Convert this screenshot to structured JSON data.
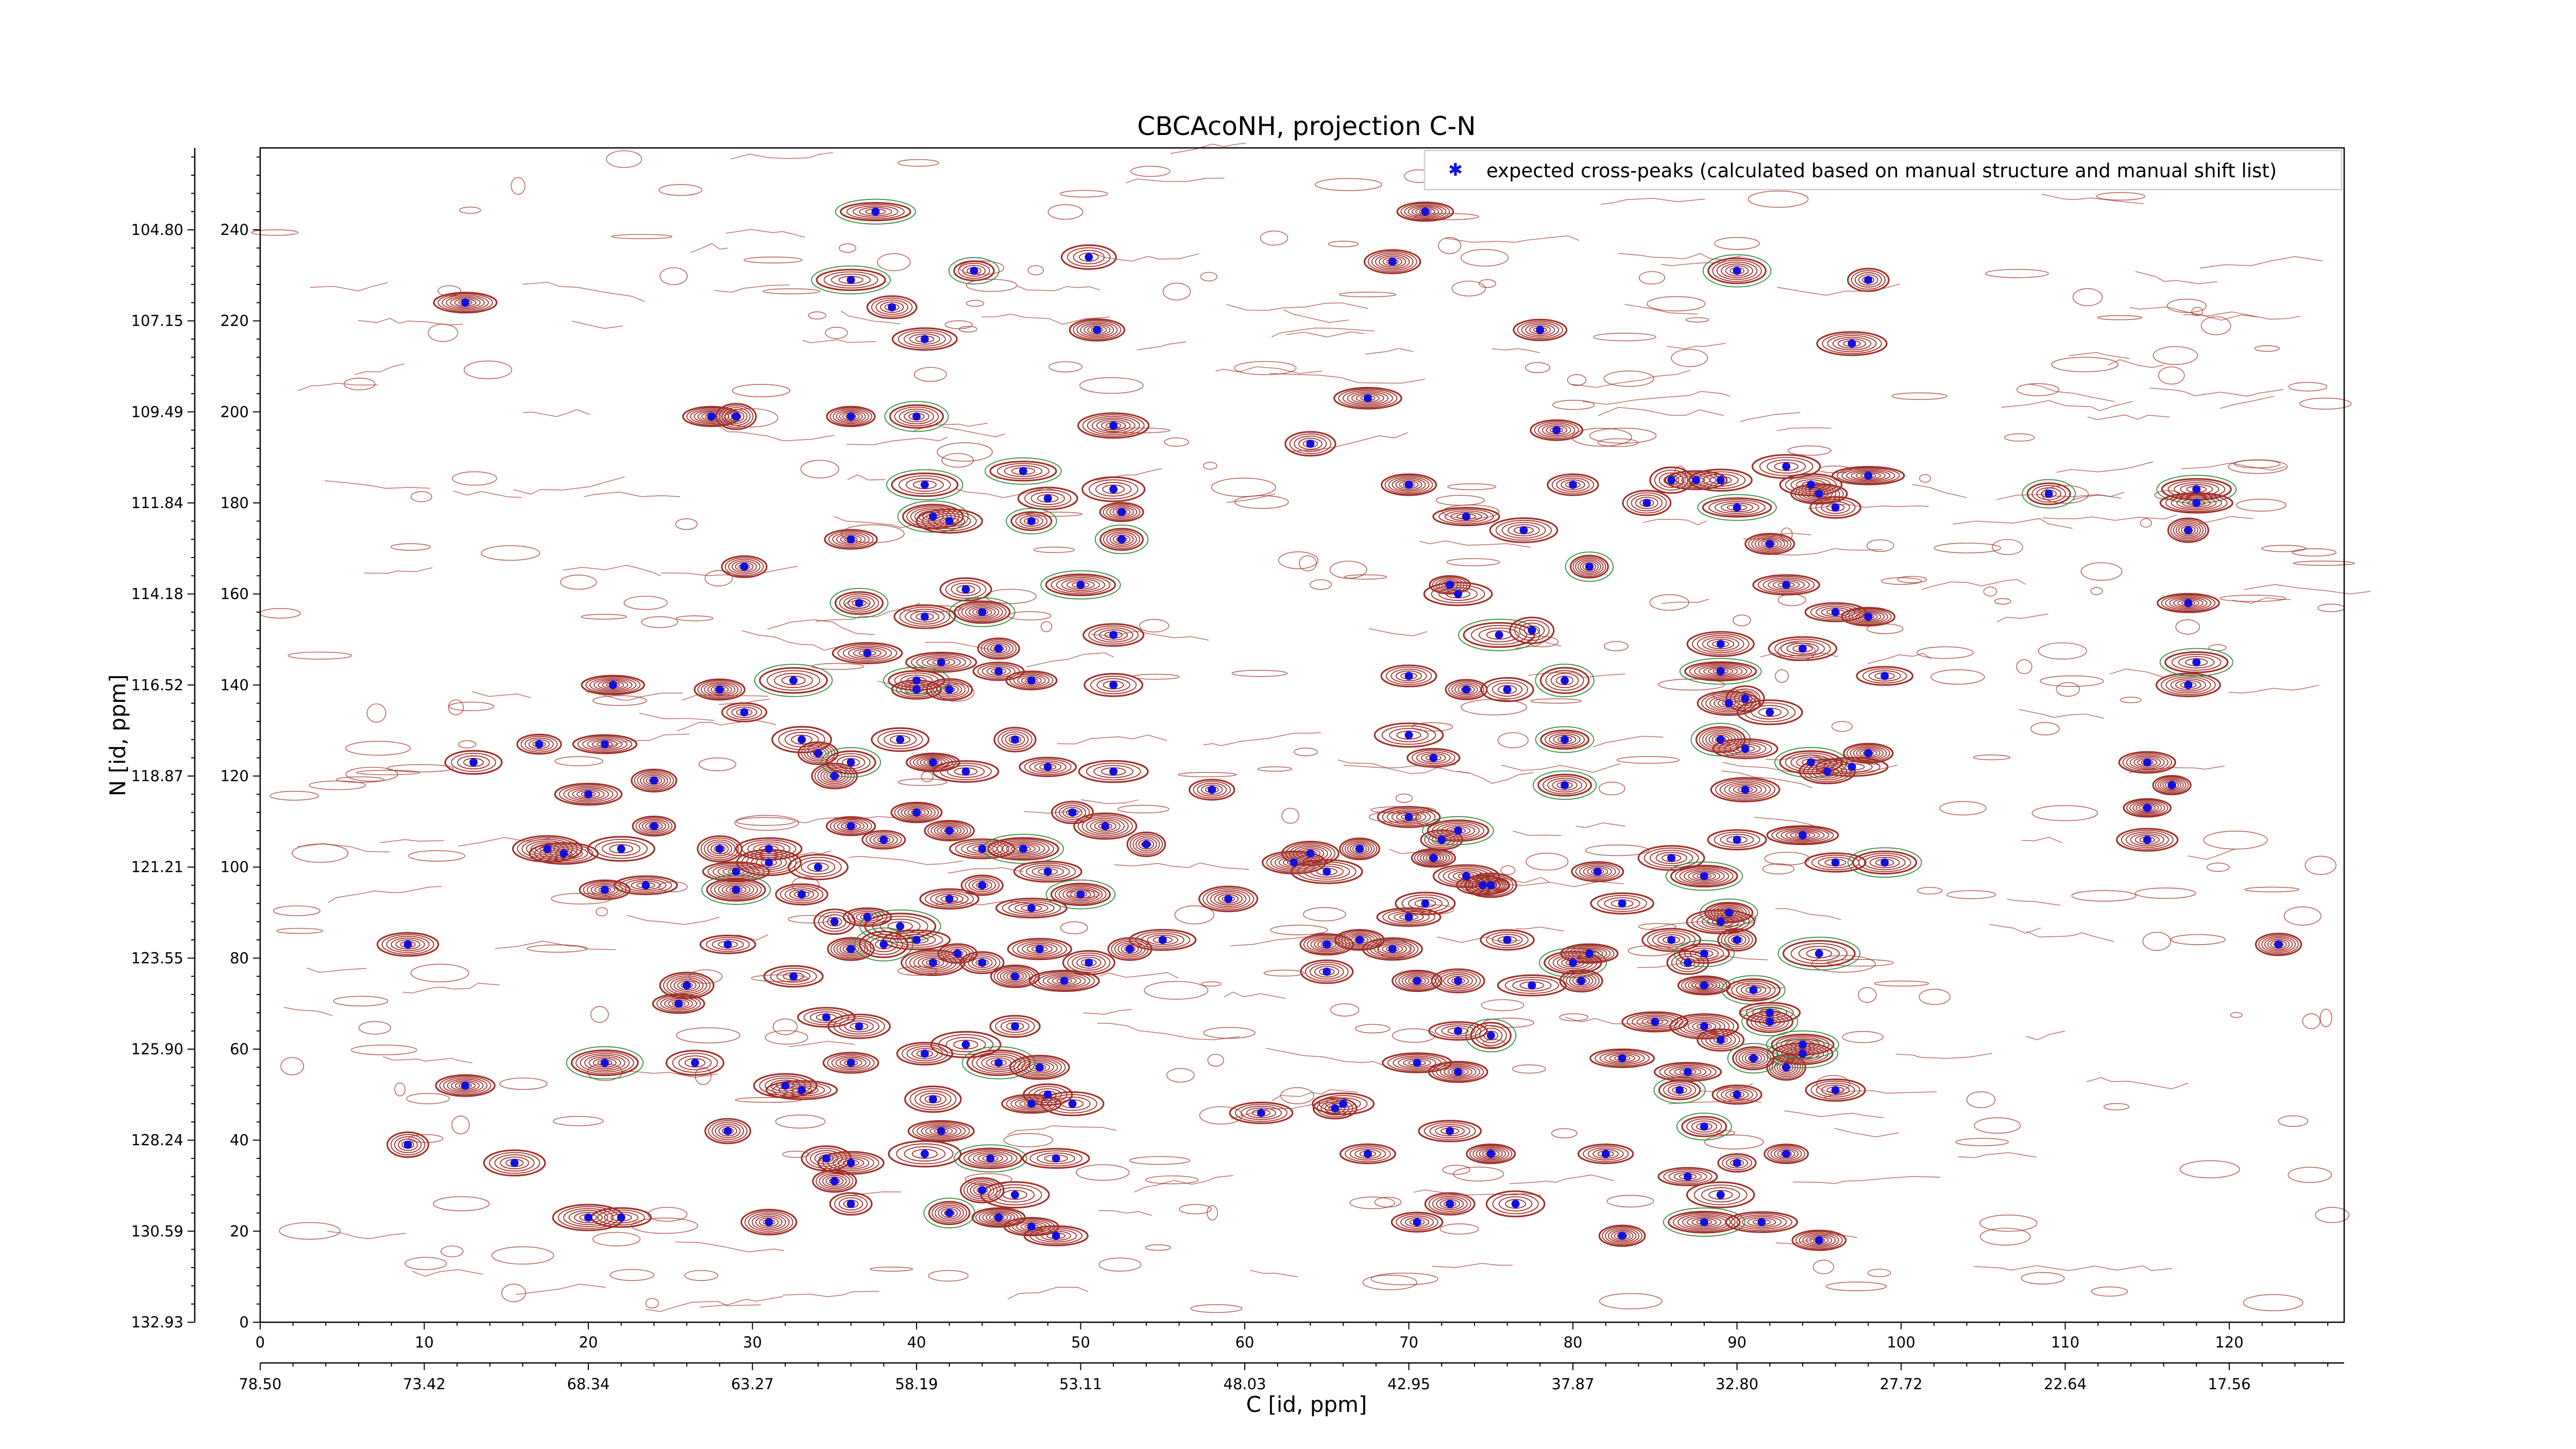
{
  "chart_data": {
    "type": "scatter",
    "title": "CBCAcoNH, projection C-N",
    "xlabel": "C [id, ppm]",
    "ylabel": "N [id, ppm]",
    "xlim": [
      0,
      127
    ],
    "ylim": [
      0,
      258
    ],
    "x_ticks": [
      "0",
      "10",
      "20",
      "30",
      "40",
      "50",
      "60",
      "70",
      "80",
      "90",
      "100",
      "110",
      "120"
    ],
    "x_ticks_secondary": [
      "78.50",
      "73.42",
      "68.34",
      "63.27",
      "58.19",
      "53.11",
      "48.03",
      "42.95",
      "37.87",
      "32.80",
      "27.72",
      "22.64",
      "17.56"
    ],
    "y_ticks": [
      "0",
      "20",
      "40",
      "60",
      "80",
      "100",
      "120",
      "140",
      "160",
      "180",
      "200",
      "220",
      "240"
    ],
    "y_ticks_secondary": [
      "132.93",
      "130.59",
      "128.24",
      "125.90",
      "123.55",
      "121.21",
      "118.87",
      "116.52",
      "114.18",
      "111.84",
      "109.49",
      "107.15",
      "104.80"
    ],
    "legend": {
      "position": "top-right",
      "label": "expected cross-peaks (calculated based on manual structure and manual shift list)"
    },
    "colors": {
      "marker": "#1010e0",
      "contour_pos": "#a0302a",
      "contour_neg": "#2e8b3e"
    },
    "series": [
      {
        "name": "expected cross-peaks (calculated based on manual structure and manual shift list)",
        "points": [
          [
            37.5,
            244
          ],
          [
            71,
            244
          ],
          [
            36,
            229
          ],
          [
            43.5,
            231
          ],
          [
            50.5,
            234
          ],
          [
            69,
            233
          ],
          [
            90,
            231
          ],
          [
            98,
            229
          ],
          [
            12.5,
            224
          ],
          [
            38.5,
            223
          ],
          [
            40.5,
            216
          ],
          [
            51,
            218
          ],
          [
            78,
            218
          ],
          [
            97,
            215
          ],
          [
            29,
            199
          ],
          [
            27.5,
            199
          ],
          [
            36,
            199
          ],
          [
            40,
            199
          ],
          [
            52,
            197
          ],
          [
            64,
            193
          ],
          [
            67.5,
            203
          ],
          [
            79,
            196
          ],
          [
            40.5,
            184
          ],
          [
            46.5,
            187
          ],
          [
            48,
            181
          ],
          [
            41,
            177
          ],
          [
            47,
            176
          ],
          [
            52,
            183
          ],
          [
            52.5,
            178
          ],
          [
            36,
            172
          ],
          [
            29.5,
            166
          ],
          [
            42,
            176
          ],
          [
            52.5,
            172
          ],
          [
            70,
            184
          ],
          [
            73.5,
            177
          ],
          [
            77,
            174
          ],
          [
            80,
            184
          ],
          [
            86,
            185
          ],
          [
            87.5,
            185
          ],
          [
            89,
            185
          ],
          [
            90,
            179
          ],
          [
            84.5,
            180
          ],
          [
            93,
            188
          ],
          [
            96,
            179
          ],
          [
            98,
            186
          ],
          [
            95,
            182
          ],
          [
            94.5,
            184
          ],
          [
            81,
            166
          ],
          [
            92,
            171
          ],
          [
            109,
            182
          ],
          [
            118,
            183
          ],
          [
            117.5,
            174
          ],
          [
            118,
            180
          ],
          [
            36.5,
            158
          ],
          [
            40.5,
            155
          ],
          [
            43,
            161
          ],
          [
            44,
            156
          ],
          [
            50,
            162
          ],
          [
            52,
            151
          ],
          [
            45,
            148
          ],
          [
            41.5,
            145
          ],
          [
            37,
            147
          ],
          [
            72.5,
            162
          ],
          [
            73,
            160
          ],
          [
            75.5,
            151
          ],
          [
            77.5,
            152
          ],
          [
            89,
            149
          ],
          [
            93,
            162
          ],
          [
            94,
            148
          ],
          [
            96,
            156
          ],
          [
            98,
            155
          ],
          [
            117.5,
            158
          ],
          [
            21.5,
            140
          ],
          [
            28,
            139
          ],
          [
            29.5,
            134
          ],
          [
            32.5,
            141
          ],
          [
            40,
            139
          ],
          [
            40,
            141
          ],
          [
            42,
            139
          ],
          [
            45,
            143
          ],
          [
            47,
            141
          ],
          [
            52,
            140
          ],
          [
            70,
            142
          ],
          [
            73.5,
            139
          ],
          [
            76,
            139
          ],
          [
            79.5,
            141
          ],
          [
            89,
            143
          ],
          [
            89.5,
            136
          ],
          [
            90.5,
            137
          ],
          [
            92,
            134
          ],
          [
            99,
            142
          ],
          [
            117.5,
            140
          ],
          [
            118,
            145
          ],
          [
            13,
            123
          ],
          [
            17,
            127
          ],
          [
            21,
            127
          ],
          [
            24,
            119
          ],
          [
            33,
            128
          ],
          [
            34,
            125
          ],
          [
            35,
            120
          ],
          [
            36,
            123
          ],
          [
            39,
            128
          ],
          [
            41,
            123
          ],
          [
            43,
            121
          ],
          [
            46,
            128
          ],
          [
            48,
            122
          ],
          [
            52,
            121
          ],
          [
            58,
            117
          ],
          [
            70,
            129
          ],
          [
            71.5,
            124
          ],
          [
            79.5,
            128
          ],
          [
            79.5,
            118
          ],
          [
            89,
            128
          ],
          [
            90.5,
            126
          ],
          [
            90.5,
            117
          ],
          [
            94.5,
            123
          ],
          [
            95.5,
            121
          ],
          [
            97,
            122
          ],
          [
            98,
            125
          ],
          [
            115,
            123
          ],
          [
            116.5,
            118
          ],
          [
            115,
            113
          ],
          [
            20,
            116
          ],
          [
            17.5,
            104
          ],
          [
            18.5,
            103
          ],
          [
            22,
            104
          ],
          [
            24,
            109
          ],
          [
            28,
            104
          ],
          [
            29,
            99
          ],
          [
            31,
            104
          ],
          [
            34,
            100
          ],
          [
            36,
            109
          ],
          [
            38,
            106
          ],
          [
            40,
            112
          ],
          [
            42,
            108
          ],
          [
            44,
            104
          ],
          [
            46.5,
            104
          ],
          [
            48,
            99
          ],
          [
            49.5,
            112
          ],
          [
            51.5,
            109
          ],
          [
            54,
            105
          ],
          [
            63,
            101
          ],
          [
            64,
            103
          ],
          [
            65,
            99
          ],
          [
            67,
            104
          ],
          [
            70,
            111
          ],
          [
            71.5,
            102
          ],
          [
            72,
            106
          ],
          [
            73,
            108
          ],
          [
            73.5,
            98
          ],
          [
            74.5,
            96
          ],
          [
            71,
            92
          ],
          [
            75,
            96
          ],
          [
            81.5,
            99
          ],
          [
            83,
            92
          ],
          [
            86,
            102
          ],
          [
            88,
            98
          ],
          [
            89.5,
            90
          ],
          [
            90,
            106
          ],
          [
            94,
            107
          ],
          [
            96,
            101
          ],
          [
            99,
            101
          ],
          [
            115,
            106
          ],
          [
            21,
            95
          ],
          [
            23.5,
            96
          ],
          [
            29,
            95
          ],
          [
            31,
            101
          ],
          [
            33,
            94
          ],
          [
            35,
            88
          ],
          [
            37,
            89
          ],
          [
            39,
            87
          ],
          [
            42,
            93
          ],
          [
            44,
            96
          ],
          [
            47,
            91
          ],
          [
            50,
            94
          ],
          [
            9,
            83
          ],
          [
            26,
            74
          ],
          [
            25.5,
            70
          ],
          [
            28.5,
            83
          ],
          [
            32.5,
            76
          ],
          [
            36,
            82
          ],
          [
            38,
            83
          ],
          [
            40,
            84
          ],
          [
            41,
            79
          ],
          [
            42.5,
            81
          ],
          [
            44,
            79
          ],
          [
            46,
            76
          ],
          [
            47.5,
            82
          ],
          [
            49,
            75
          ],
          [
            50.5,
            79
          ],
          [
            53,
            82
          ],
          [
            55,
            84
          ],
          [
            59,
            93
          ],
          [
            65,
            83
          ],
          [
            67,
            84
          ],
          [
            69,
            82
          ],
          [
            65,
            77
          ],
          [
            70,
            89
          ],
          [
            70.5,
            75
          ],
          [
            73,
            75
          ],
          [
            76,
            84
          ],
          [
            77.5,
            74
          ],
          [
            80,
            79
          ],
          [
            80.5,
            75
          ],
          [
            81,
            81
          ],
          [
            86,
            84
          ],
          [
            87,
            79
          ],
          [
            88,
            81
          ],
          [
            88,
            74
          ],
          [
            89,
            88
          ],
          [
            90,
            84
          ],
          [
            91,
            73
          ],
          [
            92,
            68
          ],
          [
            95,
            81
          ],
          [
            123,
            83
          ],
          [
            12.5,
            52
          ],
          [
            21,
            57
          ],
          [
            26.5,
            57
          ],
          [
            32,
            52
          ],
          [
            33,
            51
          ],
          [
            34.5,
            67
          ],
          [
            36.5,
            65
          ],
          [
            36,
            57
          ],
          [
            40.5,
            59
          ],
          [
            41,
            49
          ],
          [
            43,
            61
          ],
          [
            45,
            57
          ],
          [
            46,
            65
          ],
          [
            47.5,
            56
          ],
          [
            48,
            50
          ],
          [
            49.5,
            48
          ],
          [
            47,
            48
          ],
          [
            70.5,
            57
          ],
          [
            73,
            55
          ],
          [
            75,
            63
          ],
          [
            73,
            64
          ],
          [
            61,
            46
          ],
          [
            65.5,
            47
          ],
          [
            66,
            48
          ],
          [
            83,
            58
          ],
          [
            85,
            66
          ],
          [
            86.5,
            51
          ],
          [
            87,
            55
          ],
          [
            88,
            65
          ],
          [
            89,
            62
          ],
          [
            90,
            50
          ],
          [
            92,
            66
          ],
          [
            93,
            56
          ],
          [
            94,
            59
          ],
          [
            96,
            51
          ],
          [
            91,
            58
          ],
          [
            94,
            61
          ],
          [
            9,
            39
          ],
          [
            15.5,
            35
          ],
          [
            28.5,
            42
          ],
          [
            36,
            35
          ],
          [
            34.5,
            36
          ],
          [
            35,
            31
          ],
          [
            40.5,
            37
          ],
          [
            41.5,
            42
          ],
          [
            44.5,
            36
          ],
          [
            48.5,
            36
          ],
          [
            67.5,
            37
          ],
          [
            72.5,
            42
          ],
          [
            75,
            37
          ],
          [
            82,
            37
          ],
          [
            87,
            32
          ],
          [
            88,
            43
          ],
          [
            90,
            35
          ],
          [
            93,
            37
          ],
          [
            20,
            23
          ],
          [
            22,
            23
          ],
          [
            31,
            22
          ],
          [
            36,
            26
          ],
          [
            42,
            24
          ],
          [
            44,
            29
          ],
          [
            45,
            23
          ],
          [
            46,
            28
          ],
          [
            47,
            21
          ],
          [
            48.5,
            19
          ],
          [
            70.5,
            22
          ],
          [
            72.5,
            26
          ],
          [
            76.5,
            26
          ],
          [
            83,
            19
          ],
          [
            88,
            22
          ],
          [
            89,
            28
          ],
          [
            91.5,
            22
          ],
          [
            95,
            18
          ]
        ]
      }
    ]
  }
}
